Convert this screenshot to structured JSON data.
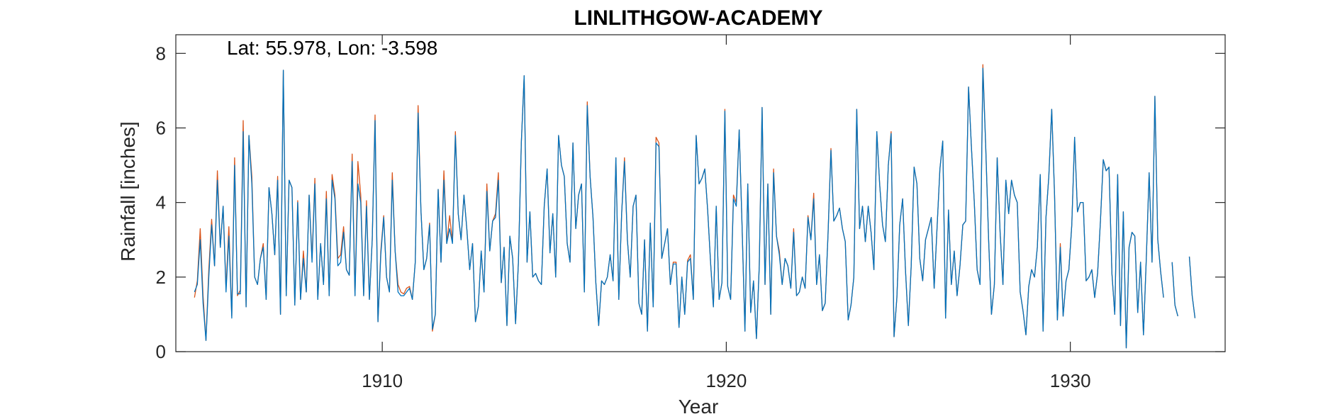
{
  "chart_data": {
    "type": "line",
    "title": "LINLITHGOW-ACADEMY",
    "xlabel": "Year",
    "ylabel": "Rainfall [inches]",
    "annotation": "Lat: 55.978, Lon: -3.598",
    "xlim": [
      1904,
      1934.5
    ],
    "ylim": [
      0,
      8.5
    ],
    "xticks": [
      1910,
      1920,
      1930
    ],
    "yticks": [
      0,
      2,
      4,
      6,
      8
    ],
    "grid": false,
    "colors": {
      "series_0": "#D95319",
      "series_1": "#0072BD",
      "axes": "#262626"
    },
    "series": [
      {
        "start": [
          1904,
          7
        ],
        "values": [
          1.45,
          1.9,
          3.3,
          1.5,
          0.3,
          2.2,
          3.55,
          2.3,
          4.85,
          2.8,
          3.9,
          1.7,
          3.35,
          0.95,
          5.2,
          1.5,
          1.65,
          6.2,
          1.2,
          5.8,
          4.7,
          2.0,
          1.8,
          2.5,
          2.9,
          1.4,
          4.4,
          3.7,
          2.6,
          4.7,
          1.0,
          7.55,
          1.5,
          4.6,
          4.4,
          1.25,
          4.05,
          1.4,
          2.7,
          1.6,
          4.2,
          2.5,
          4.65,
          1.4,
          2.9,
          1.8,
          4.3,
          1.5,
          4.75,
          4.2,
          2.5,
          2.6,
          3.35,
          2.2,
          2.05,
          5.3,
          1.5,
          5.1,
          4.2,
          1.5,
          4.05,
          1.4,
          3.0,
          6.35,
          0.8,
          2.7,
          3.65,
          2.0,
          1.6,
          4.8,
          2.7,
          1.8,
          1.6,
          1.55,
          1.7,
          1.75,
          1.4,
          2.4,
          6.6,
          3.8,
          2.2,
          2.5,
          3.45,
          0.55,
          1.0,
          4.35,
          2.4,
          4.85,
          2.9,
          3.65,
          2.95,
          5.9,
          3.7,
          3.0,
          4.2,
          3.3,
          2.2,
          2.9,
          0.8,
          1.2,
          2.7,
          1.6,
          4.5,
          2.7,
          3.5,
          3.7,
          4.8,
          1.85,
          2.8,
          0.7,
          3.1,
          2.5,
          0.75,
          2.4,
          5.6,
          7.4,
          2.4,
          3.75,
          2.0,
          2.1,
          1.9,
          1.8,
          3.9,
          4.9,
          2.65,
          3.7,
          2.0,
          5.8,
          5.0,
          4.7,
          2.9,
          2.4,
          5.6,
          3.3,
          4.2,
          4.5,
          1.6,
          6.7,
          4.7,
          3.6,
          1.85,
          0.7,
          1.9,
          1.8,
          2.0,
          2.6,
          1.9,
          5.2,
          1.4,
          3.7,
          5.2,
          3.0,
          2.0,
          3.9,
          4.2,
          1.3,
          1.0,
          3.0,
          0.55,
          3.45,
          1.2,
          5.75,
          5.6,
          2.5,
          2.9,
          3.3,
          1.8,
          2.4,
          2.4,
          0.65,
          2.0,
          1.0,
          2.45,
          2.6,
          1.4,
          5.8,
          4.5,
          4.65,
          4.9,
          3.8,
          2.4,
          1.2,
          3.9,
          1.4,
          1.85,
          6.5,
          1.75,
          1.4,
          4.2,
          4.0,
          5.95,
          3.4,
          0.55,
          4.5,
          1.05,
          1.9,
          0.35,
          2.3,
          6.55,
          1.8,
          4.5,
          1.0,
          4.9,
          3.1,
          2.7,
          1.8,
          2.5,
          2.3,
          1.7,
          3.3,
          1.5,
          1.6,
          2.0,
          1.7,
          3.65,
          3.0,
          4.25,
          1.8,
          2.6,
          1.1,
          1.3,
          3.15,
          5.45,
          3.5,
          3.65,
          3.85,
          3.3,
          2.95,
          0.85,
          1.25,
          2.0,
          6.5,
          3.3,
          3.9,
          2.95,
          3.9,
          3.2,
          2.2,
          5.9,
          4.5,
          3.4,
          2.95,
          5.0,
          5.9,
          0.4,
          1.45,
          3.4,
          4.1,
          2.2,
          0.7,
          2.3,
          4.95,
          4.5,
          2.5,
          1.9,
          3.0,
          3.3,
          3.6,
          1.7,
          3.3,
          4.9,
          5.65,
          0.9,
          3.8,
          1.8,
          2.7,
          1.5,
          2.3,
          3.4,
          3.5,
          7.1,
          5.5,
          4.0,
          2.2,
          1.8,
          7.7,
          5.5,
          3.0,
          1.0,
          1.8,
          5.2,
          3.2,
          1.8,
          4.6,
          3.7,
          4.6,
          4.2,
          4.0,
          1.6,
          1.1,
          0.45,
          1.75,
          2.2,
          2.0,
          2.8,
          4.75,
          0.55,
          3.6,
          4.7,
          6.5,
          4.2,
          0.85,
          2.9,
          0.95,
          1.9,
          2.2,
          3.4,
          5.75,
          3.75,
          4.0,
          4.0,
          1.9,
          2.0,
          2.2,
          1.45,
          2.1,
          3.5,
          5.15,
          4.85,
          4.95,
          2.1,
          1.0,
          4.75,
          0.7,
          3.75,
          0.1,
          2.8,
          3.2,
          3.1,
          1.05,
          2.4,
          0.45,
          2.5,
          4.8,
          2.4,
          6.85,
          3.0,
          2.15,
          1.45,
          null,
          null,
          2.4,
          1.25,
          0.95,
          null,
          null,
          null,
          2.55,
          1.5,
          0.9
        ]
      },
      {
        "start": [
          1904,
          7
        ],
        "values": [
          1.6,
          1.8,
          3.0,
          1.3,
          0.3,
          2.0,
          3.4,
          2.3,
          4.6,
          2.8,
          3.9,
          1.6,
          3.1,
          0.9,
          5.0,
          1.55,
          1.55,
          5.9,
          1.2,
          5.8,
          4.5,
          2.0,
          1.8,
          2.5,
          2.8,
          1.4,
          4.4,
          3.7,
          2.6,
          4.6,
          1.0,
          7.55,
          1.5,
          4.6,
          4.4,
          1.25,
          4.0,
          1.4,
          2.5,
          1.6,
          4.2,
          2.4,
          4.5,
          1.4,
          2.9,
          1.8,
          4.1,
          1.5,
          4.6,
          4.1,
          2.3,
          2.4,
          3.2,
          2.2,
          2.05,
          5.1,
          1.5,
          4.5,
          4.0,
          1.5,
          3.9,
          1.4,
          3.0,
          6.2,
          0.8,
          2.6,
          3.6,
          2.0,
          1.6,
          4.6,
          2.7,
          1.6,
          1.5,
          1.5,
          1.6,
          1.7,
          1.4,
          2.4,
          6.4,
          3.8,
          2.2,
          2.5,
          3.4,
          0.6,
          1.0,
          4.35,
          2.4,
          4.6,
          2.9,
          3.3,
          2.9,
          5.8,
          3.7,
          3.0,
          4.2,
          3.3,
          2.2,
          2.9,
          0.8,
          1.2,
          2.7,
          1.6,
          4.3,
          2.7,
          3.5,
          3.6,
          4.6,
          1.85,
          2.8,
          0.7,
          3.1,
          2.5,
          0.75,
          2.4,
          5.6,
          7.4,
          2.4,
          3.75,
          2.0,
          2.1,
          1.9,
          1.8,
          3.9,
          4.9,
          2.65,
          3.7,
          2.0,
          5.8,
          5.0,
          4.7,
          2.9,
          2.4,
          5.6,
          3.3,
          4.2,
          4.5,
          1.6,
          6.6,
          4.7,
          3.6,
          1.85,
          0.7,
          1.9,
          1.8,
          2.0,
          2.6,
          1.9,
          5.2,
          1.4,
          3.7,
          5.1,
          3.0,
          2.0,
          3.9,
          4.2,
          1.3,
          1.0,
          3.0,
          0.55,
          3.45,
          1.2,
          5.6,
          5.5,
          2.5,
          2.9,
          3.3,
          1.8,
          2.35,
          2.35,
          0.65,
          2.0,
          1.0,
          2.4,
          2.5,
          1.4,
          5.8,
          4.5,
          4.65,
          4.9,
          3.8,
          2.4,
          1.2,
          3.9,
          1.4,
          1.85,
          6.45,
          1.75,
          1.4,
          4.1,
          3.9,
          5.95,
          3.4,
          0.55,
          4.5,
          1.05,
          1.9,
          0.35,
          2.3,
          6.55,
          1.8,
          4.5,
          1.0,
          4.8,
          3.1,
          2.6,
          1.8,
          2.5,
          2.3,
          1.7,
          3.2,
          1.5,
          1.6,
          2.0,
          1.7,
          3.6,
          3.0,
          4.1,
          1.8,
          2.6,
          1.1,
          1.3,
          3.15,
          5.4,
          3.5,
          3.65,
          3.85,
          3.3,
          2.95,
          0.85,
          1.25,
          2.0,
          6.5,
          3.3,
          3.9,
          2.95,
          3.9,
          3.2,
          2.2,
          5.9,
          4.5,
          3.4,
          2.95,
          5.0,
          5.85,
          0.4,
          1.45,
          3.4,
          4.1,
          2.2,
          0.7,
          2.3,
          4.95,
          4.5,
          2.5,
          1.9,
          3.0,
          3.3,
          3.6,
          1.7,
          3.3,
          4.9,
          5.65,
          0.9,
          3.8,
          1.8,
          2.7,
          1.5,
          2.3,
          3.4,
          3.5,
          7.1,
          5.5,
          4.0,
          2.2,
          1.8,
          7.6,
          5.5,
          3.0,
          1.0,
          1.8,
          5.2,
          3.2,
          1.8,
          4.6,
          3.7,
          4.6,
          4.2,
          4.0,
          1.6,
          1.1,
          0.45,
          1.75,
          2.2,
          2.0,
          2.8,
          4.75,
          0.55,
          3.6,
          4.7,
          6.5,
          4.2,
          0.85,
          2.8,
          0.95,
          1.9,
          2.2,
          3.4,
          5.75,
          3.75,
          4.0,
          4.0,
          1.9,
          2.0,
          2.2,
          1.45,
          2.1,
          3.5,
          5.15,
          4.85,
          4.95,
          2.1,
          1.0,
          4.75,
          0.7,
          3.75,
          0.1,
          2.8,
          3.2,
          3.1,
          1.05,
          2.4,
          0.45,
          2.5,
          4.8,
          2.4,
          6.85,
          3.0,
          2.15,
          1.45,
          null,
          null,
          2.4,
          1.25,
          0.95,
          null,
          null,
          null,
          2.55,
          1.5,
          0.9
        ]
      }
    ]
  }
}
